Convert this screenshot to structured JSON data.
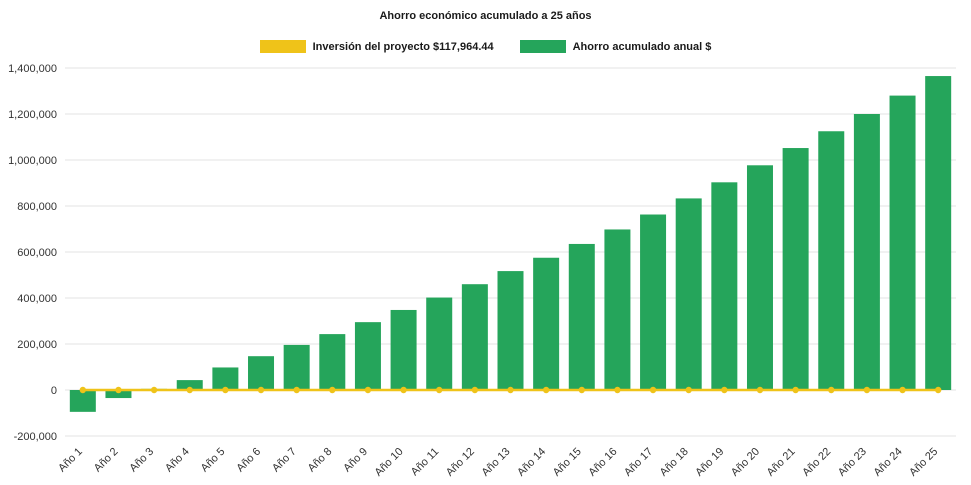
{
  "chart_data": {
    "type": "bar",
    "title": "Ahorro económico acumulado a 25 años",
    "categories": [
      "Año 1",
      "Año 2",
      "Año 3",
      "Año 4",
      "Año 5",
      "Año 6",
      "Año 7",
      "Año 8",
      "Año 9",
      "Año 10",
      "Año 11",
      "Año 12",
      "Año 13",
      "Año 14",
      "Año 15",
      "Año 16",
      "Año 17",
      "Año 18",
      "Año 19",
      "Año 20",
      "Año 21",
      "Año 22",
      "Año 23",
      "Año 24",
      "Año 25"
    ],
    "series": [
      {
        "name": "Inversión del proyecto $117,964.44",
        "type": "line",
        "color": "#efc319",
        "values": [
          0,
          0,
          0,
          0,
          0,
          0,
          0,
          0,
          0,
          0,
          0,
          0,
          0,
          0,
          0,
          0,
          0,
          0,
          0,
          0,
          0,
          0,
          0,
          0,
          0
        ]
      },
      {
        "name": "Ahorro acumulado anual $",
        "type": "bar",
        "color": "#25a55b",
        "values": [
          -95000,
          -35000,
          5000,
          43000,
          98000,
          147000,
          196000,
          243000,
          295000,
          348000,
          402000,
          460000,
          517000,
          575000,
          635000,
          698000,
          763000,
          833000,
          903000,
          977000,
          1052000,
          1125000,
          1200000,
          1280000,
          1365000
        ]
      }
    ],
    "ylim": [
      -200000,
      1400000
    ],
    "y_ticks": [
      {
        "value": 1400000,
        "label": "1,400,000"
      },
      {
        "value": 1200000,
        "label": "1,200,000"
      },
      {
        "value": 1000000,
        "label": "1,000,000"
      },
      {
        "value": 800000,
        "label": "800,000"
      },
      {
        "value": 600000,
        "label": "600,000"
      },
      {
        "value": 400000,
        "label": "400,000"
      },
      {
        "value": 200000,
        "label": "200,000"
      },
      {
        "value": 0,
        "label": "0"
      },
      {
        "value": -200000,
        "label": "-200,000"
      }
    ],
    "grid": true,
    "legend_position": "top"
  },
  "colors": {
    "background": "#ffffff",
    "grid": "#e3e3e3",
    "axis_text": "#333333",
    "bar_green": "#25a55b",
    "line_gold": "#efc319"
  }
}
